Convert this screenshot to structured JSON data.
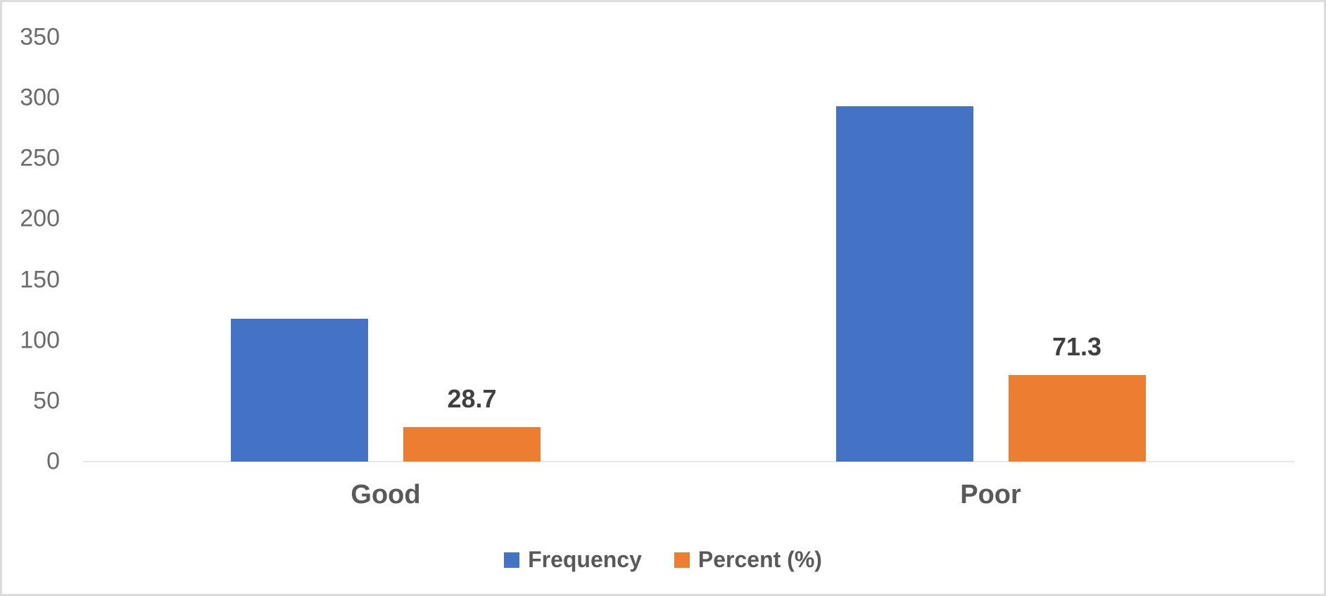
{
  "chart_data": {
    "type": "bar",
    "title": "",
    "xlabel": "",
    "ylabel": "",
    "categories": [
      "Good",
      "Poor"
    ],
    "series": [
      {
        "name": "Frequency",
        "color": "#4472C4",
        "values": [
          118,
          293
        ],
        "show_data_labels": false,
        "data_labels": [
          "",
          ""
        ]
      },
      {
        "name": "Percent (%)",
        "color": "#ED7D31",
        "values": [
          28.7,
          71.3
        ],
        "show_data_labels": true,
        "data_labels": [
          "28.7",
          "71.3"
        ]
      }
    ],
    "ylim": [
      0,
      350
    ],
    "yticks": [
      0,
      50,
      100,
      150,
      200,
      250,
      300,
      350
    ],
    "grid": false,
    "legend_position": "bottom",
    "colors": {
      "axis_tick_label": "#6b6b6b",
      "category_label": "#595959",
      "data_label": "#3f3f3f",
      "legend_label": "#595959",
      "baseline": "#e7e7e7",
      "background": "#ffffff",
      "frame_border": "#dcdcdc"
    }
  }
}
